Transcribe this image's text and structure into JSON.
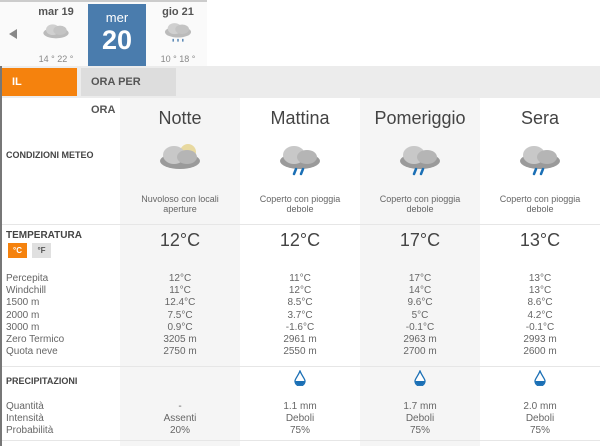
{
  "days": [
    {
      "name": "mar 19",
      "temps": "14 ° 22 °",
      "icon": "cloudy-icon"
    },
    {
      "name": "mer",
      "num": "20",
      "selected": true
    },
    {
      "name": "gio 21",
      "temps": "10 ° 18 °",
      "icon": "cloudy-rain-icon"
    }
  ],
  "tabs": {
    "day": "IL GIORNO",
    "hourly": "ORA PER ORA"
  },
  "labels": {
    "conditions": "CONDIZIONI METEO",
    "temperature": "TEMPERATURA",
    "celsius": "°C",
    "fahrenheit": "°F",
    "temp_rows": "Percepita\nWindchill\n1500 m\n2000 m\n3000 m\nZero Termico\nQuota neve",
    "precip": "PRECIPITAZIONI",
    "precip_rows": "Quantità\nIntensità\nProbabilità"
  },
  "periods": [
    {
      "name": "Notte",
      "desc": "Nuvoloso con locali aperture",
      "icon": "partly-cloudy-night-icon",
      "temp": "12°C",
      "details": "12°C\n11°C\n12.4°C\n7.5°C\n0.9°C\n3205 m\n2750 m",
      "precip": "-\nAssenti\n20%",
      "drop": false
    },
    {
      "name": "Mattina",
      "desc": "Coperto con pioggia debole",
      "icon": "cloud-rain-icon",
      "temp": "12°C",
      "details": "11°C\n12°C\n8.5°C\n3.7°C\n-1.6°C\n2961 m\n2550 m",
      "precip": "1.1 mm\nDeboli\n75%",
      "drop": true
    },
    {
      "name": "Pomeriggio",
      "desc": "Coperto con pioggia debole",
      "icon": "cloud-rain-icon",
      "temp": "17°C",
      "details": "17°C\n14°C\n9.6°C\n5°C\n-0.1°C\n2963 m\n2700 m",
      "precip": "1.7 mm\nDeboli\n75%",
      "drop": true
    },
    {
      "name": "Sera",
      "desc": "Coperto con pioggia debole",
      "icon": "cloud-rain-icon",
      "temp": "13°C",
      "details": "13°C\n13°C\n8.6°C\n4.2°C\n-0.1°C\n2993 m\n2600 m",
      "precip": "2.0 mm\nDeboli\n75%",
      "drop": true
    }
  ],
  "colors": {
    "accent": "#f5820d",
    "selected_day": "#4a7cad",
    "drop": "#1a6fb5"
  }
}
